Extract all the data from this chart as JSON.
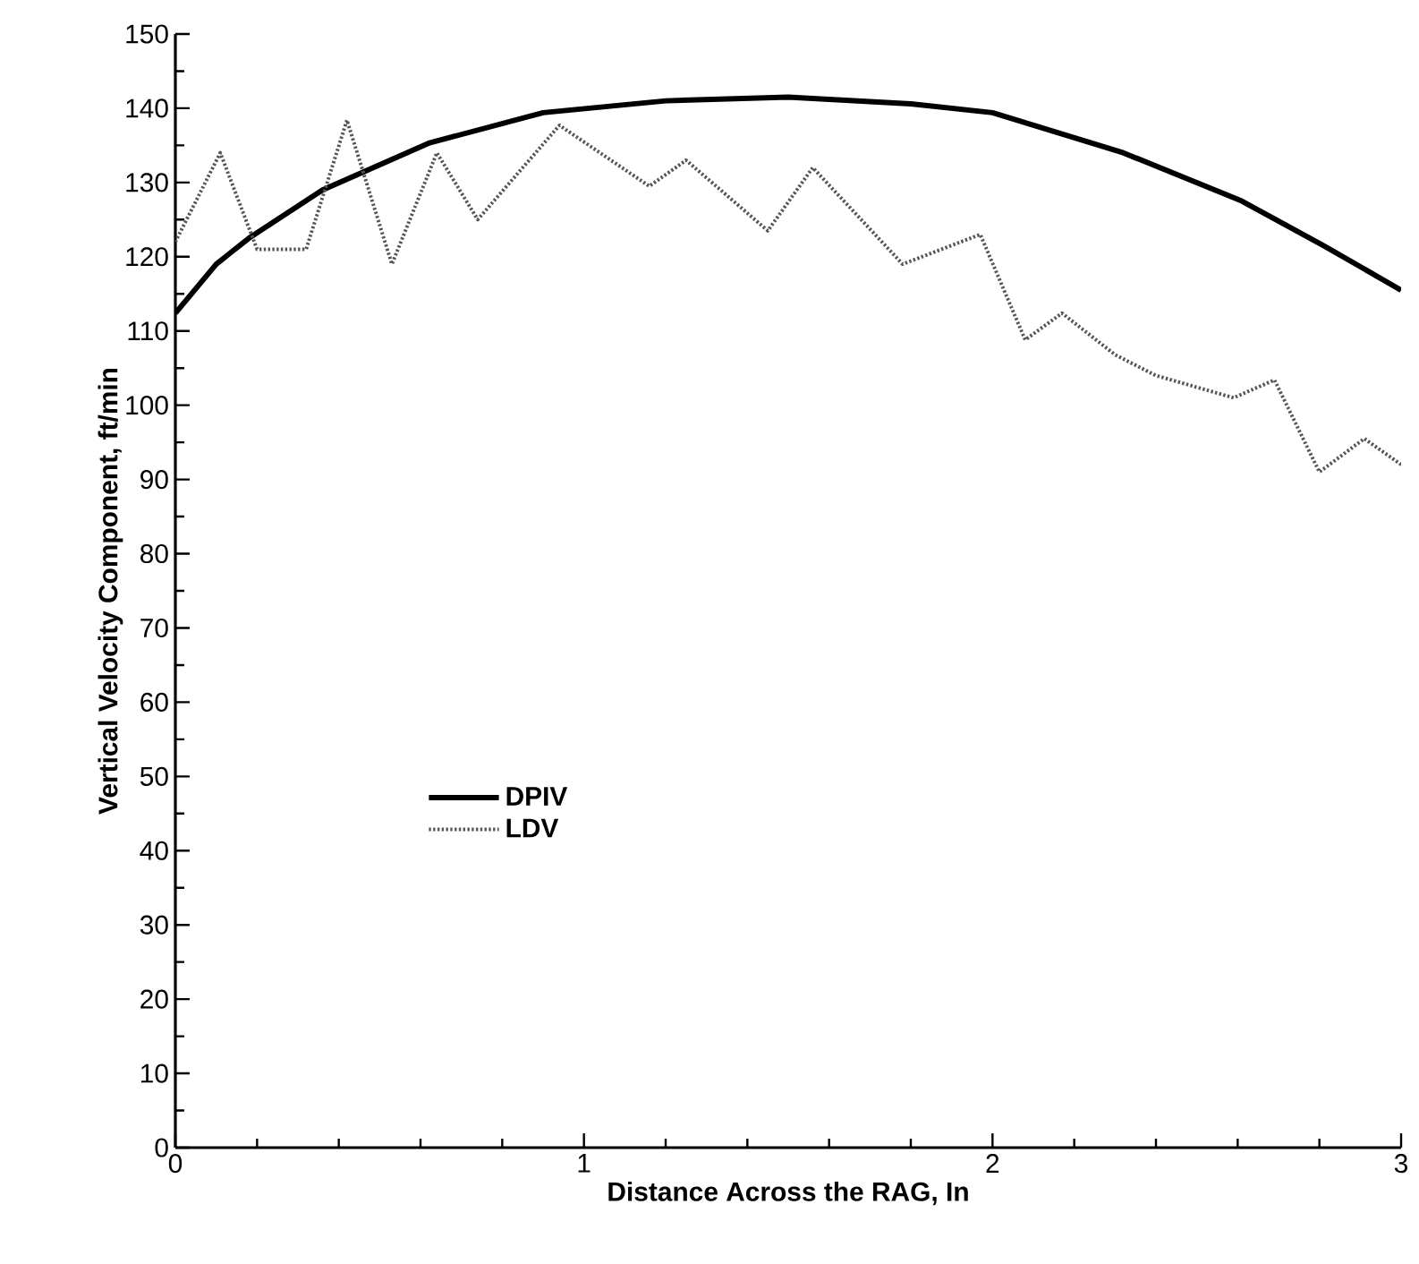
{
  "chart_data": {
    "type": "line",
    "xlabel": "Distance Across the RAG, In",
    "ylabel": "Vertical Velocity Component, ft/min",
    "xlim": [
      0,
      3
    ],
    "ylim": [
      0,
      150
    ],
    "xticks": [
      0,
      1,
      2,
      3
    ],
    "yticks": [
      0,
      10,
      20,
      30,
      40,
      50,
      60,
      70,
      80,
      90,
      100,
      110,
      120,
      130,
      140,
      150
    ],
    "legend": "center left",
    "marker": "none",
    "grid": false,
    "series": [
      {
        "name": "DPIV",
        "color": "#000000",
        "line_style": "solid",
        "x": [
          0,
          0.1,
          0.18,
          0.36,
          0.62,
          0.9,
          1.2,
          1.5,
          1.8,
          2.0,
          2.32,
          2.61,
          2.81,
          3.0
        ],
        "values": [
          112.4,
          119,
          122.5,
          129,
          135.3,
          139.4,
          141,
          141.5,
          140.6,
          139.4,
          134,
          127.5,
          121.5,
          115.5
        ]
      },
      {
        "name": "LDV",
        "color": "#555555",
        "line_style": "dotted",
        "x": [
          0,
          0.11,
          0.2,
          0.32,
          0.42,
          0.53,
          0.64,
          0.74,
          0.94,
          1.16,
          1.25,
          1.45,
          1.56,
          1.78,
          1.97,
          2.08,
          2.17,
          2.3,
          2.4,
          2.59,
          2.69,
          2.8,
          2.91,
          3.0
        ],
        "values": [
          122,
          134,
          121,
          121,
          138.4,
          119,
          134,
          125,
          137.7,
          129.5,
          133,
          123.5,
          132,
          119,
          123,
          108.8,
          112.4,
          106.8,
          104,
          101,
          103.4,
          91,
          95.5,
          92
        ]
      }
    ]
  }
}
